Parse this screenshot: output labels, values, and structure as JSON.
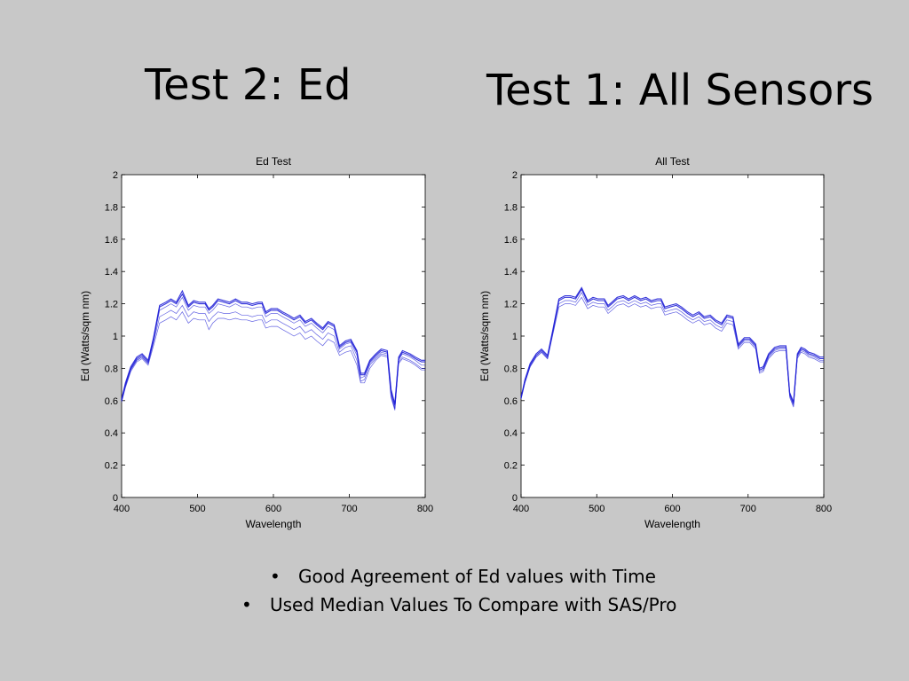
{
  "slide": {
    "title_left": "Test 2: Ed",
    "title_right": "Test 1: All Sensors",
    "bullets": [
      "Good Agreement of Ed values with Time",
      "Used Median Values To Compare with SAS/Pro"
    ],
    "bullet_symbol": "•"
  },
  "colors": {
    "background": "#c8c8c8",
    "plot_area": "#ffffff",
    "line": "#1f1fd6"
  },
  "chart_data": [
    {
      "type": "line",
      "title": "Ed Test",
      "xlabel": "Wavelength",
      "ylabel": "Ed (Watts/sqm nm)",
      "xlim": [
        400,
        800
      ],
      "ylim": [
        0,
        2
      ],
      "xticks": [
        400,
        500,
        600,
        700,
        800
      ],
      "yticks": [
        0,
        0.2,
        0.4,
        0.6,
        0.8,
        1,
        1.2,
        1.4,
        1.6,
        1.8,
        2
      ],
      "x": [
        400,
        405,
        412,
        420,
        427,
        435,
        442,
        450,
        458,
        465,
        472,
        480,
        488,
        495,
        502,
        510,
        515,
        520,
        527,
        535,
        542,
        550,
        558,
        565,
        572,
        580,
        585,
        590,
        597,
        605,
        612,
        620,
        627,
        635,
        642,
        650,
        657,
        665,
        672,
        680,
        687,
        695,
        702,
        710,
        715,
        720,
        727,
        735,
        742,
        750,
        755,
        760,
        765,
        770,
        775,
        780,
        787,
        795,
        800
      ],
      "series": [
        {
          "values": [
            0.6,
            0.7,
            0.8,
            0.86,
            0.88,
            0.84,
            0.98,
            1.18,
            1.2,
            1.22,
            1.2,
            1.26,
            1.18,
            1.21,
            1.2,
            1.2,
            1.16,
            1.18,
            1.22,
            1.21,
            1.2,
            1.22,
            1.2,
            1.2,
            1.19,
            1.2,
            1.2,
            1.14,
            1.16,
            1.16,
            1.14,
            1.12,
            1.1,
            1.12,
            1.08,
            1.1,
            1.07,
            1.04,
            1.08,
            1.06,
            0.93,
            0.96,
            0.97,
            0.9,
            0.76,
            0.76,
            0.84,
            0.88,
            0.91,
            0.9,
            0.66,
            0.57,
            0.86,
            0.9,
            0.89,
            0.88,
            0.86,
            0.84,
            0.84
          ]
        },
        {
          "values": [
            0.61,
            0.71,
            0.81,
            0.87,
            0.89,
            0.85,
            0.99,
            1.19,
            1.21,
            1.23,
            1.21,
            1.28,
            1.19,
            1.22,
            1.21,
            1.21,
            1.17,
            1.19,
            1.23,
            1.22,
            1.21,
            1.23,
            1.21,
            1.21,
            1.2,
            1.21,
            1.21,
            1.15,
            1.17,
            1.17,
            1.15,
            1.13,
            1.11,
            1.13,
            1.09,
            1.11,
            1.08,
            1.05,
            1.09,
            1.07,
            0.94,
            0.97,
            0.98,
            0.91,
            0.77,
            0.77,
            0.85,
            0.89,
            0.92,
            0.91,
            0.67,
            0.58,
            0.87,
            0.91,
            0.9,
            0.89,
            0.87,
            0.85,
            0.85
          ]
        },
        {
          "values": [
            0.6,
            0.69,
            0.79,
            0.85,
            0.87,
            0.83,
            0.97,
            1.16,
            1.18,
            1.2,
            1.18,
            1.24,
            1.16,
            1.19,
            1.18,
            1.18,
            1.14,
            1.16,
            1.2,
            1.19,
            1.18,
            1.2,
            1.18,
            1.18,
            1.17,
            1.18,
            1.18,
            1.12,
            1.14,
            1.14,
            1.12,
            1.1,
            1.08,
            1.1,
            1.06,
            1.08,
            1.05,
            1.02,
            1.06,
            1.04,
            0.92,
            0.95,
            0.96,
            0.88,
            0.74,
            0.75,
            0.83,
            0.87,
            0.9,
            0.89,
            0.64,
            0.55,
            0.85,
            0.89,
            0.88,
            0.87,
            0.85,
            0.82,
            0.82
          ]
        },
        {
          "values": [
            0.6,
            0.69,
            0.79,
            0.85,
            0.87,
            0.83,
            0.96,
            1.12,
            1.14,
            1.16,
            1.14,
            1.19,
            1.12,
            1.15,
            1.14,
            1.14,
            1.09,
            1.12,
            1.15,
            1.14,
            1.14,
            1.15,
            1.13,
            1.13,
            1.12,
            1.13,
            1.13,
            1.08,
            1.1,
            1.1,
            1.08,
            1.06,
            1.04,
            1.06,
            1.02,
            1.04,
            1.01,
            0.98,
            1.02,
            1.0,
            0.9,
            0.93,
            0.94,
            0.85,
            0.72,
            0.73,
            0.82,
            0.86,
            0.89,
            0.88,
            0.63,
            0.55,
            0.84,
            0.87,
            0.86,
            0.85,
            0.83,
            0.8,
            0.8
          ]
        },
        {
          "values": [
            0.59,
            0.68,
            0.78,
            0.84,
            0.86,
            0.82,
            0.94,
            1.08,
            1.1,
            1.12,
            1.1,
            1.15,
            1.08,
            1.11,
            1.1,
            1.1,
            1.04,
            1.08,
            1.11,
            1.11,
            1.1,
            1.11,
            1.1,
            1.1,
            1.09,
            1.1,
            1.1,
            1.05,
            1.06,
            1.06,
            1.04,
            1.02,
            1.0,
            1.02,
            0.98,
            1.0,
            0.97,
            0.94,
            0.98,
            0.96,
            0.88,
            0.9,
            0.91,
            0.82,
            0.71,
            0.71,
            0.8,
            0.85,
            0.88,
            0.87,
            0.62,
            0.54,
            0.83,
            0.86,
            0.85,
            0.84,
            0.82,
            0.79,
            0.79
          ]
        }
      ]
    },
    {
      "type": "line",
      "title": "All Test",
      "xlabel": "Wavelength",
      "ylabel": "Ed (Watts/sqm nm)",
      "xlim": [
        400,
        800
      ],
      "ylim": [
        0,
        2
      ],
      "xticks": [
        400,
        500,
        600,
        700,
        800
      ],
      "yticks": [
        0,
        0.2,
        0.4,
        0.6,
        0.8,
        1,
        1.2,
        1.4,
        1.6,
        1.8,
        2
      ],
      "x": [
        400,
        405,
        412,
        420,
        427,
        435,
        442,
        450,
        458,
        465,
        472,
        480,
        488,
        495,
        502,
        510,
        515,
        520,
        527,
        535,
        542,
        550,
        558,
        565,
        572,
        580,
        585,
        590,
        597,
        605,
        612,
        620,
        627,
        635,
        642,
        650,
        657,
        665,
        672,
        680,
        687,
        695,
        702,
        710,
        715,
        720,
        727,
        735,
        742,
        750,
        755,
        760,
        765,
        770,
        775,
        780,
        787,
        795,
        800
      ],
      "series": [
        {
          "values": [
            0.62,
            0.72,
            0.82,
            0.88,
            0.91,
            0.87,
            1.03,
            1.22,
            1.24,
            1.24,
            1.23,
            1.29,
            1.21,
            1.23,
            1.22,
            1.22,
            1.18,
            1.2,
            1.23,
            1.24,
            1.22,
            1.24,
            1.22,
            1.23,
            1.21,
            1.22,
            1.22,
            1.17,
            1.18,
            1.19,
            1.17,
            1.14,
            1.12,
            1.14,
            1.11,
            1.12,
            1.09,
            1.07,
            1.12,
            1.11,
            0.94,
            0.98,
            0.98,
            0.94,
            0.79,
            0.8,
            0.88,
            0.92,
            0.93,
            0.93,
            0.64,
            0.58,
            0.88,
            0.92,
            0.91,
            0.89,
            0.88,
            0.86,
            0.86
          ]
        },
        {
          "values": [
            0.62,
            0.73,
            0.83,
            0.89,
            0.92,
            0.88,
            1.04,
            1.23,
            1.25,
            1.25,
            1.24,
            1.3,
            1.22,
            1.24,
            1.23,
            1.23,
            1.19,
            1.21,
            1.24,
            1.25,
            1.23,
            1.25,
            1.23,
            1.24,
            1.22,
            1.23,
            1.23,
            1.18,
            1.19,
            1.2,
            1.18,
            1.15,
            1.13,
            1.15,
            1.12,
            1.13,
            1.1,
            1.08,
            1.13,
            1.12,
            0.95,
            0.99,
            0.99,
            0.95,
            0.8,
            0.81,
            0.89,
            0.93,
            0.94,
            0.94,
            0.65,
            0.59,
            0.89,
            0.93,
            0.92,
            0.9,
            0.89,
            0.87,
            0.87
          ]
        },
        {
          "values": [
            0.61,
            0.71,
            0.81,
            0.87,
            0.9,
            0.86,
            1.02,
            1.2,
            1.22,
            1.22,
            1.21,
            1.27,
            1.19,
            1.21,
            1.2,
            1.2,
            1.16,
            1.18,
            1.21,
            1.22,
            1.2,
            1.22,
            1.2,
            1.21,
            1.19,
            1.2,
            1.2,
            1.15,
            1.16,
            1.17,
            1.15,
            1.12,
            1.1,
            1.12,
            1.09,
            1.1,
            1.07,
            1.05,
            1.1,
            1.09,
            0.93,
            0.97,
            0.97,
            0.93,
            0.78,
            0.79,
            0.87,
            0.91,
            0.92,
            0.92,
            0.63,
            0.57,
            0.87,
            0.91,
            0.9,
            0.88,
            0.87,
            0.85,
            0.85
          ]
        },
        {
          "values": [
            0.61,
            0.71,
            0.81,
            0.87,
            0.9,
            0.86,
            1.01,
            1.18,
            1.2,
            1.2,
            1.19,
            1.24,
            1.17,
            1.19,
            1.18,
            1.18,
            1.14,
            1.16,
            1.19,
            1.2,
            1.18,
            1.2,
            1.18,
            1.19,
            1.17,
            1.18,
            1.18,
            1.13,
            1.14,
            1.15,
            1.13,
            1.1,
            1.08,
            1.1,
            1.07,
            1.08,
            1.05,
            1.03,
            1.08,
            1.07,
            0.92,
            0.96,
            0.96,
            0.92,
            0.77,
            0.78,
            0.86,
            0.9,
            0.91,
            0.91,
            0.62,
            0.56,
            0.86,
            0.9,
            0.89,
            0.87,
            0.86,
            0.84,
            0.84
          ]
        }
      ]
    }
  ]
}
